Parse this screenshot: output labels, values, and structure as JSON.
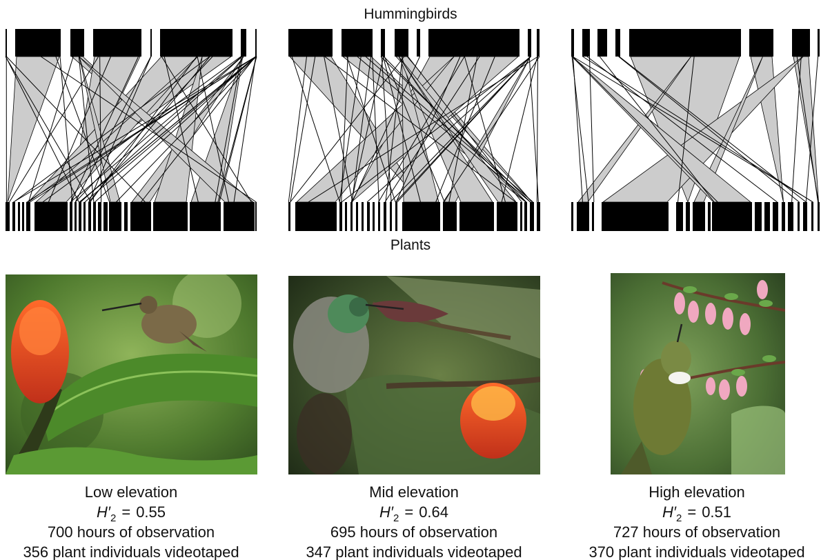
{
  "header": {
    "top_label": "Hummingbirds",
    "bottom_label": "Plants"
  },
  "panels": [
    {
      "elevation": "Low elevation",
      "metric": {
        "symbol": "H",
        "prime": "′",
        "subscript": "2",
        "relation": "=",
        "value": "0.55"
      },
      "hours": "700 hours of observation",
      "individuals": "356 plant individuals videotaped"
    },
    {
      "elevation": "Mid elevation",
      "metric": {
        "symbol": "H",
        "prime": "′",
        "subscript": "2",
        "relation": "=",
        "value": "0.64"
      },
      "hours": "695 hours of observation",
      "individuals": "347 plant individuals videotaped"
    },
    {
      "elevation": "High elevation",
      "metric": {
        "symbol": "H",
        "prime": "′",
        "subscript": "2",
        "relation": "=",
        "value": "0.51"
      },
      "hours": "727 hours of observation",
      "individuals": "370 plant individuals videotaped"
    }
  ]
}
